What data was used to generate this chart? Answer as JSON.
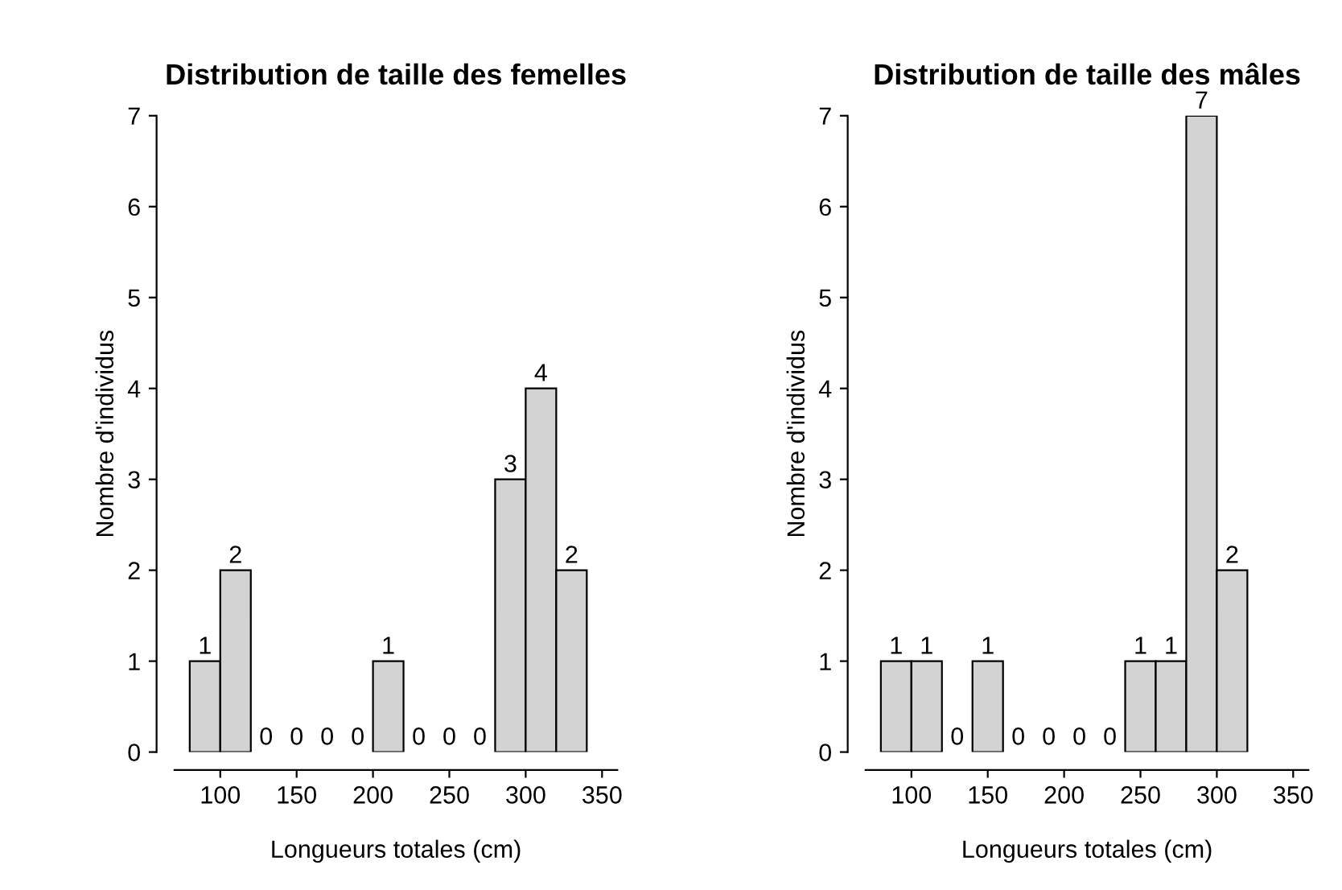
{
  "chart_data": [
    {
      "type": "histogram",
      "title": "Distribution de taille des femelles",
      "xlabel": "Longueurs totales (cm)",
      "ylabel": "Nombre d'individus",
      "bins": [
        80,
        100,
        120,
        140,
        160,
        180,
        200,
        220,
        240,
        260,
        280,
        300,
        320,
        340
      ],
      "values": [
        1,
        2,
        0,
        0,
        0,
        0,
        1,
        0,
        0,
        0,
        3,
        4,
        2
      ],
      "color": "#d3d3d3",
      "xlim": [
        70,
        360
      ],
      "xticks": [
        100,
        150,
        200,
        250,
        300,
        350
      ],
      "ylim": [
        0,
        7
      ],
      "yticks": [
        0,
        1,
        2,
        3,
        4,
        5,
        6,
        7
      ],
      "data_labels": true,
      "grid": false
    },
    {
      "type": "histogram",
      "title": "Distribution de taille des mâles",
      "xlabel": "Longueurs totales (cm)",
      "ylabel": "Nombre d'individus",
      "bins": [
        80,
        100,
        120,
        140,
        160,
        180,
        200,
        220,
        240,
        260,
        280,
        300,
        320
      ],
      "values": [
        1,
        1,
        0,
        1,
        0,
        0,
        0,
        0,
        1,
        1,
        7,
        2
      ],
      "color": "#d3d3d3",
      "xlim": [
        70,
        360
      ],
      "xticks": [
        100,
        150,
        200,
        250,
        300,
        350
      ],
      "ylim": [
        0,
        7
      ],
      "yticks": [
        0,
        1,
        2,
        3,
        4,
        5,
        6,
        7
      ],
      "data_labels": true,
      "grid": false
    }
  ]
}
